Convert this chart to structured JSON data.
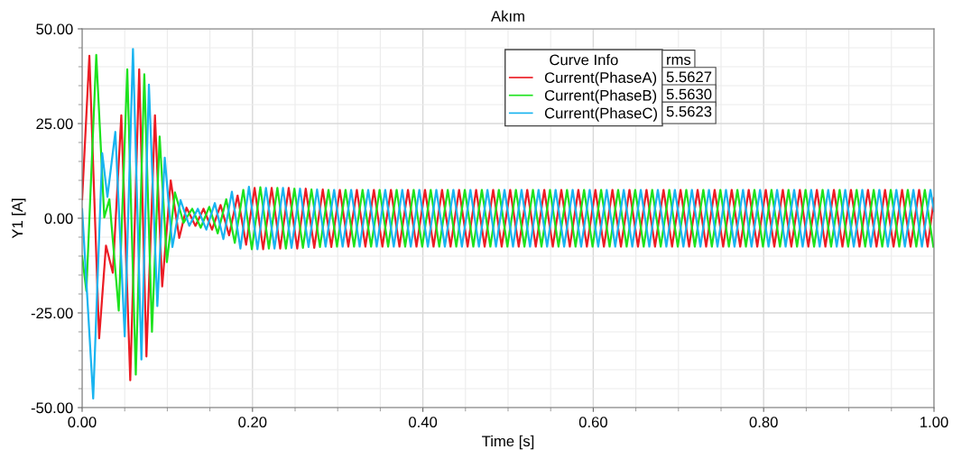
{
  "chart_data": {
    "type": "line",
    "title": "Akım",
    "xlabel": "Time [s]",
    "ylabel": "Y1 [A]",
    "xlim": [
      0,
      1
    ],
    "ylim": [
      -50,
      50
    ],
    "xticks": [
      {
        "value": 0,
        "label": "0.00"
      },
      {
        "value": 0.2,
        "label": "0.20"
      },
      {
        "value": 0.4,
        "label": "0.40"
      },
      {
        "value": 0.6,
        "label": "0.60"
      },
      {
        "value": 0.8,
        "label": "0.80"
      },
      {
        "value": 1,
        "label": "1.00"
      }
    ],
    "yticks": [
      {
        "value": -50,
        "label": "-50.00"
      },
      {
        "value": -25,
        "label": "-25.00"
      },
      {
        "value": 0,
        "label": "0.00"
      },
      {
        "value": 25,
        "label": "25.00"
      },
      {
        "value": 50,
        "label": "50.00"
      }
    ],
    "grid": true,
    "legend": "top right",
    "legend_title": "Curve Info",
    "annotations": [
      "rms",
      "5.5627",
      "5.5630",
      "5.5623"
    ],
    "series": [
      {
        "name": "Current(PhaseA)",
        "color": "#ec1c24",
        "x": [
          0,
          0.0085,
          0.02,
          0.028,
          0.036,
          0.046,
          0.0565,
          0.067,
          0.0755,
          0.0855,
          0.094,
          0.104,
          0.114,
          0.1225,
          0.133,
          0.1425,
          0.1525,
          0.1625,
          0.1725,
          0.1825,
          0.1925,
          0.2025,
          0.2125,
          0.2225,
          0.2325,
          0.2425,
          0.2525,
          0.2625,
          0.2725,
          0.2825,
          0.2925,
          0.3025,
          0.3125,
          0.3225,
          0.3325,
          0.3425,
          0.3525,
          0.3625,
          0.3725,
          0.3825,
          0.3925,
          0.4025,
          0.4125,
          0.4225,
          0.4325,
          0.4425,
          0.4525,
          0.4625,
          0.4725,
          0.4825,
          0.4925,
          0.5025,
          0.5125,
          0.5225,
          0.5325,
          0.5425,
          0.5525,
          0.5625,
          0.5725,
          0.5825,
          0.5925,
          0.6025,
          0.6125,
          0.6225,
          0.6325,
          0.6425,
          0.6525,
          0.6625,
          0.6725,
          0.6825,
          0.6925,
          0.7025,
          0.7125,
          0.7225,
          0.7325,
          0.7425,
          0.7525,
          0.7625,
          0.7725,
          0.7825,
          0.7925,
          0.8025,
          0.8125,
          0.8225,
          0.8325,
          0.8425,
          0.8525,
          0.8625,
          0.8725,
          0.8825,
          0.8925,
          0.9025,
          0.9125,
          0.9225,
          0.9325,
          0.9425,
          0.9525,
          0.9625,
          0.9725,
          0.9825,
          0.9925,
          1.0
        ],
        "values": [
          5,
          42.9,
          -31.7,
          -7.2,
          -14.4,
          27.2,
          -42.8,
          39.3,
          -36.5,
          27.2,
          -18,
          10,
          -5.2,
          2.8,
          -2,
          2.5,
          -3,
          3.5,
          -4.5,
          6,
          -7,
          8,
          -8.2,
          8,
          -8,
          8,
          -8,
          7.8,
          -7.8,
          7.6,
          -7.6,
          7.5,
          -7.5,
          7.5,
          -7.5,
          7.5,
          -7.5,
          7.5,
          -7.5,
          7.5,
          -7.5,
          7.5,
          -7.5,
          7.5,
          -7.5,
          7.5,
          -7.5,
          7.5,
          -7.5,
          7.5,
          -7.5,
          7.5,
          -7.5,
          7.5,
          -7.5,
          7.5,
          -7.5,
          7.5,
          -7.5,
          7.5,
          -7.5,
          7.5,
          -7.5,
          7.5,
          -7.5,
          7.5,
          -7.5,
          7.5,
          -7.5,
          7.5,
          -7.5,
          7.5,
          -7.5,
          7.5,
          -7.5,
          7.5,
          -7.5,
          7.5,
          -7.5,
          7.5,
          -7.5,
          7.5,
          -7.5,
          7.5,
          -7.5,
          7.5,
          -7.5,
          7.5,
          -7.5,
          7.5,
          -7.5,
          7.5,
          -7.5,
          7.5,
          -7.5,
          7.5,
          -7.5,
          7.5,
          -7.5,
          7.5,
          -7.5,
          5.3
        ]
      },
      {
        "name": "Current(PhaseB)",
        "color": "#1de21d",
        "x": [
          0,
          0.005,
          0.0166,
          0.026,
          0.032,
          0.043,
          0.053,
          0.063,
          0.073,
          0.082,
          0.091,
          0.0995,
          0.109,
          0.119,
          0.1292,
          0.1392,
          0.1492,
          0.1592,
          0.1692,
          0.1792,
          0.1892,
          0.1992,
          0.2092,
          0.2192,
          0.2292,
          0.2392,
          0.2492,
          0.2592,
          0.2692,
          0.2792,
          0.2892,
          0.2992,
          0.3092,
          0.3192,
          0.3292,
          0.3392,
          0.3492,
          0.3592,
          0.3692,
          0.3792,
          0.3892,
          0.3992,
          0.4092,
          0.4192,
          0.4292,
          0.4392,
          0.4492,
          0.4592,
          0.4692,
          0.4792,
          0.4892,
          0.4992,
          0.5092,
          0.5192,
          0.5292,
          0.5392,
          0.5492,
          0.5592,
          0.5692,
          0.5792,
          0.5892,
          0.5992,
          0.6092,
          0.6192,
          0.6292,
          0.6392,
          0.6492,
          0.6592,
          0.6692,
          0.6792,
          0.6892,
          0.6992,
          0.7092,
          0.7192,
          0.7292,
          0.7392,
          0.7492,
          0.7592,
          0.7692,
          0.7792,
          0.7892,
          0.7992,
          0.8092,
          0.8192,
          0.8292,
          0.8392,
          0.8492,
          0.8592,
          0.8692,
          0.8792,
          0.8892,
          0.8992,
          0.9092,
          0.9192,
          0.9292,
          0.9392,
          0.9492,
          0.9592,
          0.9692,
          0.9792,
          0.9892,
          0.9992
        ],
        "values": [
          -10,
          -19.2,
          43.1,
          0.2,
          5,
          -24.4,
          39.3,
          -41.3,
          38,
          -30,
          21.6,
          -11.6,
          6.8,
          -1.2,
          2.5,
          -2.5,
          3,
          -4,
          5,
          -6.5,
          7.5,
          -8.2,
          8.2,
          -8,
          8,
          -8,
          7.8,
          -7.8,
          7.6,
          -7.6,
          7.5,
          -7.5,
          7.5,
          -7.5,
          7.5,
          -7.5,
          7.5,
          -7.5,
          7.5,
          -7.5,
          7.5,
          -7.5,
          7.5,
          -7.5,
          7.5,
          -7.5,
          7.5,
          -7.5,
          7.5,
          -7.5,
          7.5,
          -7.5,
          7.5,
          -7.5,
          7.5,
          -7.5,
          7.5,
          -7.5,
          7.5,
          -7.5,
          7.5,
          -7.5,
          7.5,
          -7.5,
          7.5,
          -7.5,
          7.5,
          -7.5,
          7.5,
          -7.5,
          7.5,
          -7.5,
          7.5,
          -7.5,
          7.5,
          -7.5,
          7.5,
          -7.5,
          7.5,
          -7.5,
          7.5,
          -7.5,
          7.5,
          -7.5,
          7.5,
          -7.5,
          7.5,
          -7.5,
          7.5,
          -7.5,
          7.5,
          -7.5,
          7.5,
          -7.5,
          7.5,
          -7.5,
          7.5,
          -7.5,
          7.5,
          -7.5,
          7.5,
          -7.5
        ]
      },
      {
        "name": "Current(PhaseC)",
        "color": "#19b4f0",
        "x": [
          0,
          0.013,
          0.0236,
          0.0297,
          0.039,
          0.05,
          0.0597,
          0.0696,
          0.0784,
          0.0883,
          0.097,
          0.106,
          0.1155,
          0.1258,
          0.1358,
          0.1458,
          0.1558,
          0.1658,
          0.1758,
          0.1858,
          0.1958,
          0.2058,
          0.2158,
          0.2258,
          0.2358,
          0.2458,
          0.2558,
          0.2658,
          0.2758,
          0.2858,
          0.2958,
          0.3058,
          0.3158,
          0.3258,
          0.3358,
          0.3458,
          0.3558,
          0.3658,
          0.3758,
          0.3858,
          0.3958,
          0.4058,
          0.4158,
          0.4258,
          0.4358,
          0.4458,
          0.4558,
          0.4658,
          0.4758,
          0.4858,
          0.4958,
          0.5058,
          0.5158,
          0.5258,
          0.5358,
          0.5458,
          0.5558,
          0.5658,
          0.5758,
          0.5858,
          0.5958,
          0.6058,
          0.6158,
          0.6258,
          0.6358,
          0.6458,
          0.6558,
          0.6658,
          0.6758,
          0.6858,
          0.6958,
          0.7058,
          0.7158,
          0.7258,
          0.7358,
          0.7458,
          0.7558,
          0.7658,
          0.7758,
          0.7858,
          0.7958,
          0.8058,
          0.8158,
          0.8258,
          0.8358,
          0.8458,
          0.8558,
          0.8658,
          0.8758,
          0.8858,
          0.8958,
          0.9058,
          0.9158,
          0.9258,
          0.9358,
          0.9458,
          0.9558,
          0.9658,
          0.9758,
          0.9858,
          0.9958,
          1.0
        ],
        "values": [
          2.4,
          -47.6,
          17.2,
          5.6,
          22.8,
          -31.2,
          44.7,
          -37.3,
          35.3,
          -23.2,
          16,
          -7.6,
          4.8,
          -2,
          2.5,
          -3,
          4,
          -5.5,
          7,
          -8,
          8.3,
          -8.2,
          8,
          -8,
          8,
          -7.8,
          7.8,
          -7.6,
          7.6,
          -7.5,
          7.5,
          -7.5,
          7.5,
          -7.5,
          7.5,
          -7.5,
          7.5,
          -7.5,
          7.5,
          -7.5,
          7.5,
          -7.5,
          7.5,
          -7.5,
          7.5,
          -7.5,
          7.5,
          -7.5,
          7.5,
          -7.5,
          7.5,
          -7.5,
          7.5,
          -7.5,
          7.5,
          -7.5,
          7.5,
          -7.5,
          7.5,
          -7.5,
          7.5,
          -7.5,
          7.5,
          -7.5,
          7.5,
          -7.5,
          7.5,
          -7.5,
          7.5,
          -7.5,
          7.5,
          -7.5,
          7.5,
          -7.5,
          7.5,
          -7.5,
          7.5,
          -7.5,
          7.5,
          -7.5,
          7.5,
          -7.5,
          7.5,
          -7.5,
          7.5,
          -7.5,
          7.5,
          -7.5,
          7.5,
          -7.5,
          7.5,
          -7.5,
          7.5,
          -7.5,
          7.5,
          -7.5,
          7.5,
          -7.5,
          7.5,
          -7.5,
          7.5,
          1.9
        ]
      }
    ]
  }
}
